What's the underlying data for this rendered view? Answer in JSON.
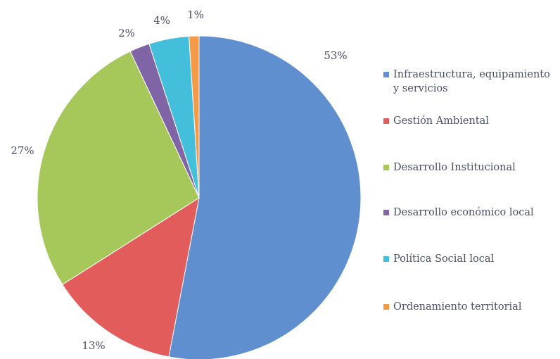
{
  "chart_data": {
    "type": "pie",
    "categories": [
      "Infraestructura, equipamiento y servicios",
      "Gestión Ambiental",
      "Desarrollo Institucional",
      "Desarrollo económico local",
      "Política Social local",
      "Ordenamiento territorial"
    ],
    "values": [
      53,
      13,
      27,
      2,
      4,
      1
    ],
    "value_labels": [
      "53%",
      "13%",
      "27%",
      "2%",
      "4%",
      "1%"
    ],
    "colors": [
      "#5f8fcf",
      "#e25c5c",
      "#a6c75a",
      "#7f64a6",
      "#43bfdc",
      "#f59a46"
    ],
    "legend": "right"
  }
}
